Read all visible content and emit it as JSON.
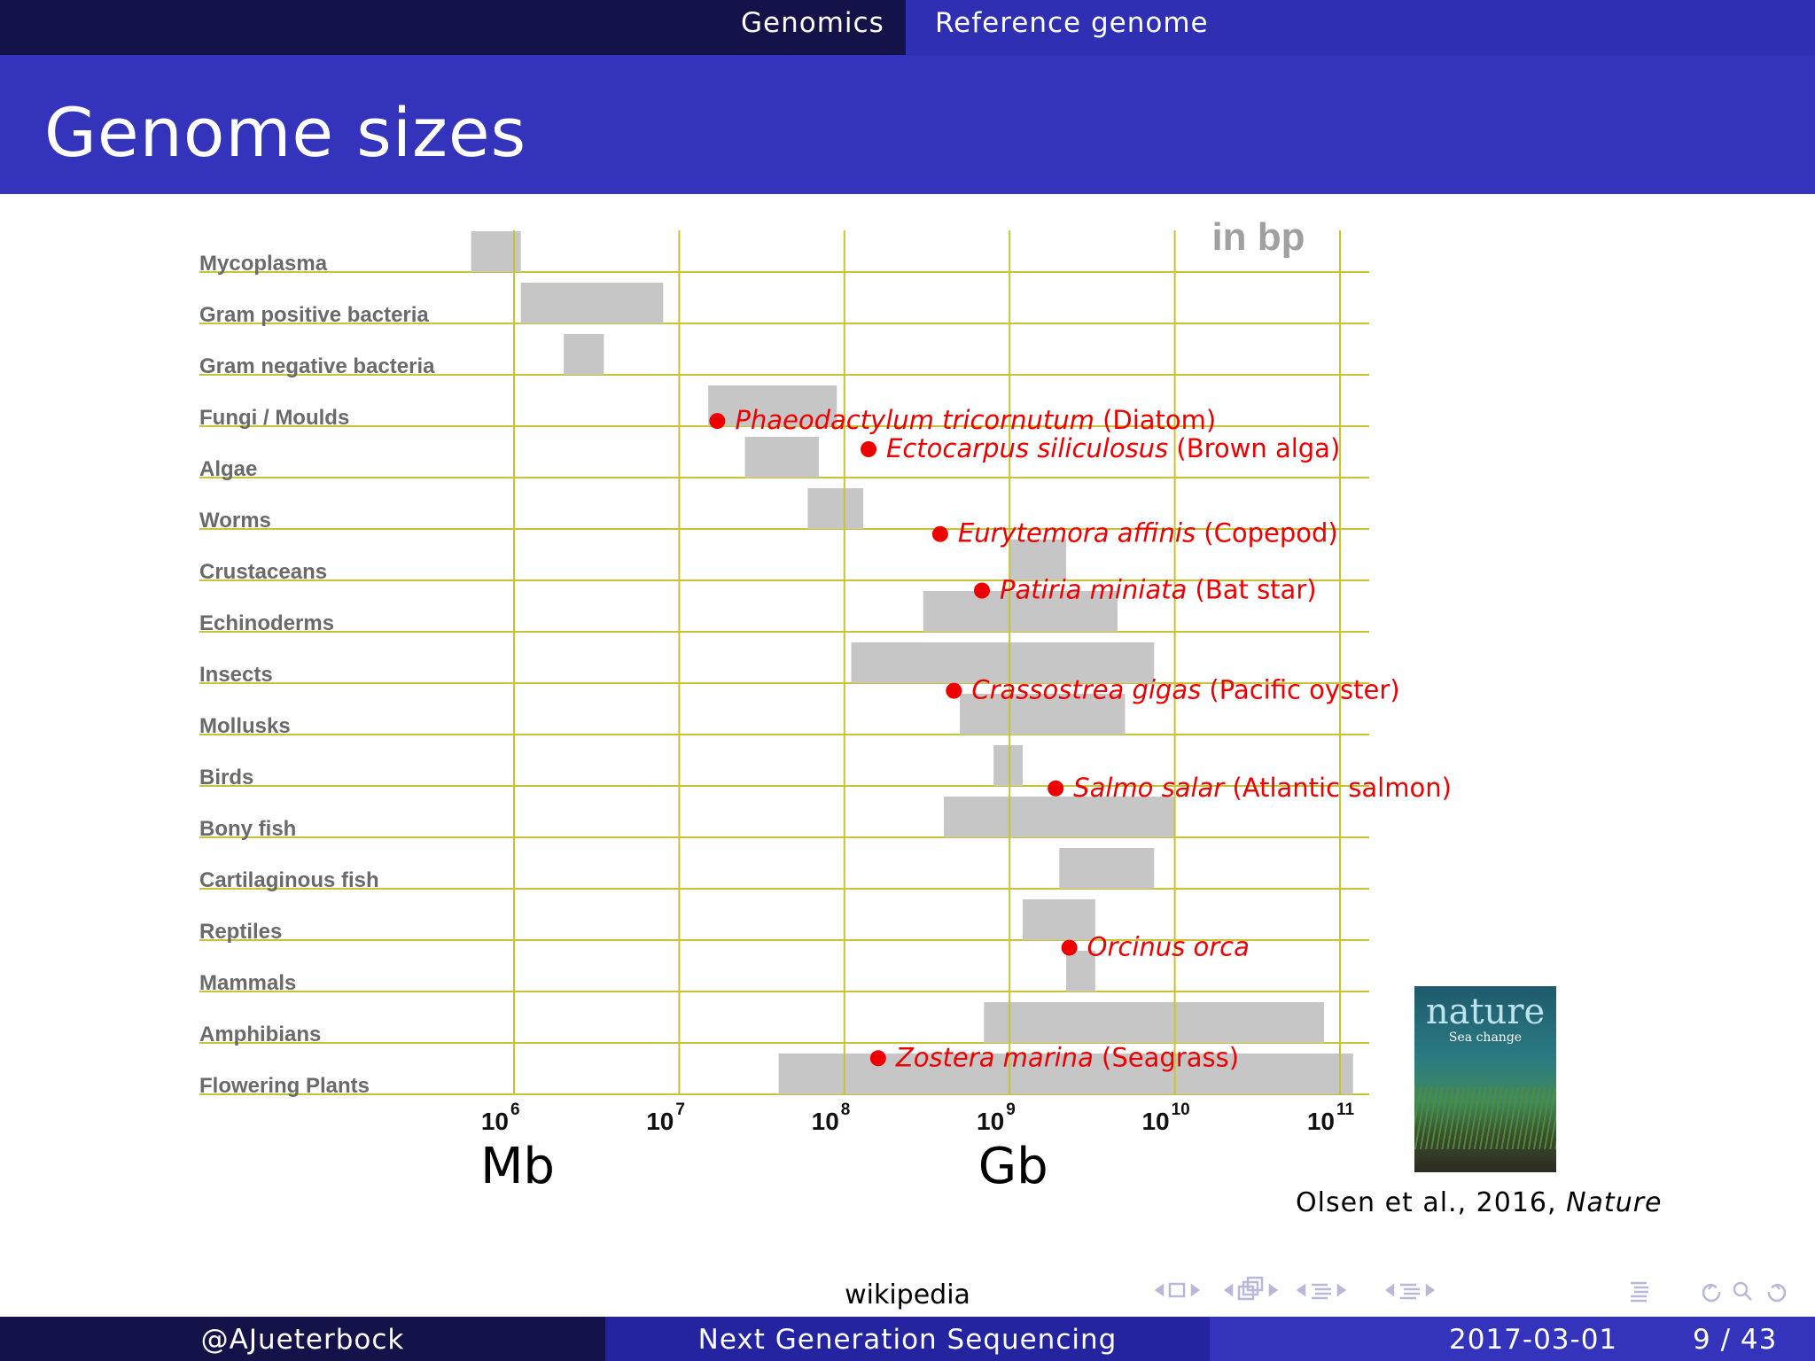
{
  "nav": {
    "section": "Genomics",
    "subsection": "Reference genome"
  },
  "frame_title": "Genome sizes",
  "chart_data": {
    "type": "bar",
    "subtype": "range",
    "unit_label": "in bp",
    "x_scale": "log",
    "xlim": [
      1000000,
      100000000000
    ],
    "x_ticks": [
      {
        "value": 1000000,
        "base": "10",
        "exp": "6"
      },
      {
        "value": 10000000,
        "base": "10",
        "exp": "7"
      },
      {
        "value": 100000000,
        "base": "10",
        "exp": "8"
      },
      {
        "value": 1000000000,
        "base": "10",
        "exp": "9"
      },
      {
        "value": 10000000000,
        "base": "10",
        "exp": "10"
      },
      {
        "value": 100000000000,
        "base": "10",
        "exp": "11"
      }
    ],
    "unit_marks": [
      {
        "text": "Mb",
        "value": 1000000
      },
      {
        "text": "Gb",
        "value": 1000000000
      }
    ],
    "categories": [
      "Mycoplasma",
      "Gram positive bacteria",
      "Gram negative bacteria",
      "Fungi / Moulds",
      "Algae",
      "Worms",
      "Crustaceans",
      "Echinoderms",
      "Insects",
      "Mollusks",
      "Birds",
      "Bony fish",
      "Cartilaginous fish",
      "Reptiles",
      "Mammals",
      "Amphibians",
      "Flowering Plants"
    ],
    "ranges": [
      [
        550000,
        1100000
      ],
      [
        1100000,
        8000000
      ],
      [
        2000000,
        3500000
      ],
      [
        15000000,
        90000000
      ],
      [
        25000000,
        70000000
      ],
      [
        60000000,
        130000000
      ],
      [
        1000000000,
        2200000000
      ],
      [
        300000000,
        4500000000
      ],
      [
        110000000,
        7500000000
      ],
      [
        500000000,
        5000000000
      ],
      [
        800000000,
        1200000000
      ],
      [
        400000000,
        10000000000
      ],
      [
        2000000000,
        7500000000
      ],
      [
        1200000000,
        3300000000
      ],
      [
        2200000000,
        3300000000
      ],
      [
        700000000,
        80000000000
      ],
      [
        40000000,
        120000000000
      ]
    ],
    "bar_color": "#c6c6c6",
    "gridline_color": "#c8c234",
    "highlights": [
      {
        "row": 4,
        "offset": -0.55,
        "value": 17000000,
        "species": "Phaeodactylum tricornutum",
        "common": "(Diatom)"
      },
      {
        "row": 4,
        "offset": 0.0,
        "value": 140000000,
        "species": "Ectocarpus siliculosus",
        "common": "(Brown alga)"
      },
      {
        "row": 6,
        "offset": -0.35,
        "value": 380000000,
        "species": "Eurytemora affinis",
        "common": "(Copepod)"
      },
      {
        "row": 7,
        "offset": -0.25,
        "value": 680000000,
        "species": "Patiria miniata",
        "common": "(Bat star)"
      },
      {
        "row": 9,
        "offset": -0.3,
        "value": 460000000,
        "species": "Crassostrea gigas",
        "common": "(Pacific oyster)"
      },
      {
        "row": 11,
        "offset": -0.4,
        "value": 1900000000,
        "species": "Salmo salar",
        "common": "(Atlantic salmon)"
      },
      {
        "row": 14,
        "offset": -0.3,
        "value": 2300000000,
        "species": "Orcinus orca",
        "common": ""
      },
      {
        "row": 16,
        "offset": -0.15,
        "value": 160000000,
        "species": "Zostera marina",
        "common": "(Seagrass)"
      }
    ],
    "highlight_color": "#ee0000"
  },
  "cover": {
    "masthead": "nature",
    "headline": "Sea change"
  },
  "citation": {
    "text": "Olsen et al., 2016,",
    "journal": "Nature"
  },
  "source": "wikipedia",
  "footer": {
    "author": "@AJueterbock",
    "title": "Next Generation Sequencing",
    "date": "2017-03-01",
    "page": "9 / 43"
  },
  "nav_icons": [
    "frame-prev-icon",
    "frame-icon",
    "frame-next-icon",
    "subsection-prev-icon",
    "subsection-icon",
    "subsection-next-icon",
    "section-prev-icon",
    "section-icon",
    "section-next-icon",
    "document-icon",
    "back-icon",
    "search-icon",
    "forward-icon"
  ]
}
